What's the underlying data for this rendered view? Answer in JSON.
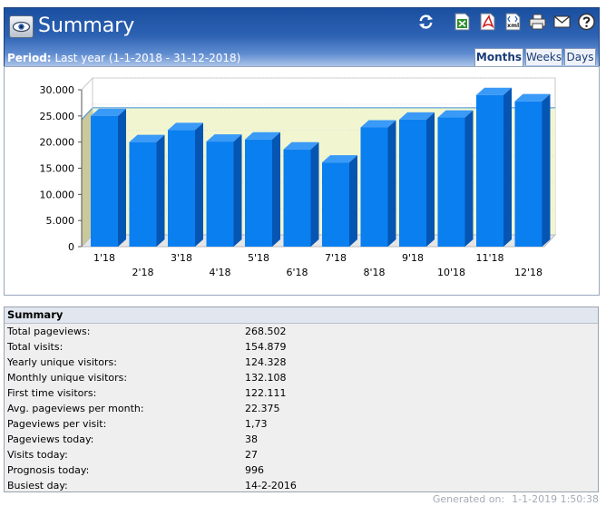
{
  "header": {
    "title": "Summary",
    "period_label": "Period:",
    "period_value": "Last year (1-1-2018 - 31-12-2018)"
  },
  "tabs": [
    {
      "label": "Months",
      "active": true
    },
    {
      "label": "Weeks",
      "active": false
    },
    {
      "label": "Days",
      "active": false
    }
  ],
  "toolbar": {
    "icons": [
      "refresh-icon",
      "excel-export-icon",
      "pdf-export-icon",
      "xml-export-icon",
      "print-icon",
      "email-icon",
      "help-icon"
    ],
    "xml_text": "xml"
  },
  "colors": {
    "bar_face": "#0a7ff0",
    "bar_side": "#0555b3",
    "bar_top": "#3a9af7",
    "average_band": "#f2f6d0",
    "header_dark": "#1a4fa0"
  },
  "chart_data": {
    "type": "bar",
    "categories": [
      "1'18",
      "2'18",
      "3'18",
      "4'18",
      "5'18",
      "6'18",
      "7'18",
      "8'18",
      "9'18",
      "10'18",
      "11'18",
      "12'18"
    ],
    "values": [
      25000,
      20000,
      22300,
      20100,
      20500,
      18600,
      16100,
      22800,
      24300,
      24700,
      29000,
      27800
    ],
    "ylim": [
      0,
      30000
    ],
    "yticks": [
      "0",
      "5.000",
      "10.000",
      "15.000",
      "20.000",
      "25.000",
      "30.000"
    ],
    "average_line": 24300,
    "grid": true,
    "style": "3d"
  },
  "summary": {
    "heading": "Summary",
    "rows": [
      {
        "label": "Total pageviews:",
        "value": "268.502"
      },
      {
        "label": "Total visits:",
        "value": "154.879"
      },
      {
        "label": "Yearly unique visitors:",
        "value": "124.328"
      },
      {
        "label": "Monthly unique visitors:",
        "value": "132.108"
      },
      {
        "label": "First time visitors:",
        "value": "122.111"
      },
      {
        "label": "Avg. pageviews per month:",
        "value": "22.375"
      },
      {
        "label": "Pageviews per visit:",
        "value": "1,73"
      },
      {
        "label": "Pageviews today:",
        "value": "38"
      },
      {
        "label": "Visits today:",
        "value": "27"
      },
      {
        "label": "Prognosis today:",
        "value": "996"
      },
      {
        "label": "Busiest day:",
        "value": "14-2-2016"
      }
    ]
  },
  "footer": {
    "label": "Generated on:",
    "value": "1-1-2019 1:50:38"
  }
}
